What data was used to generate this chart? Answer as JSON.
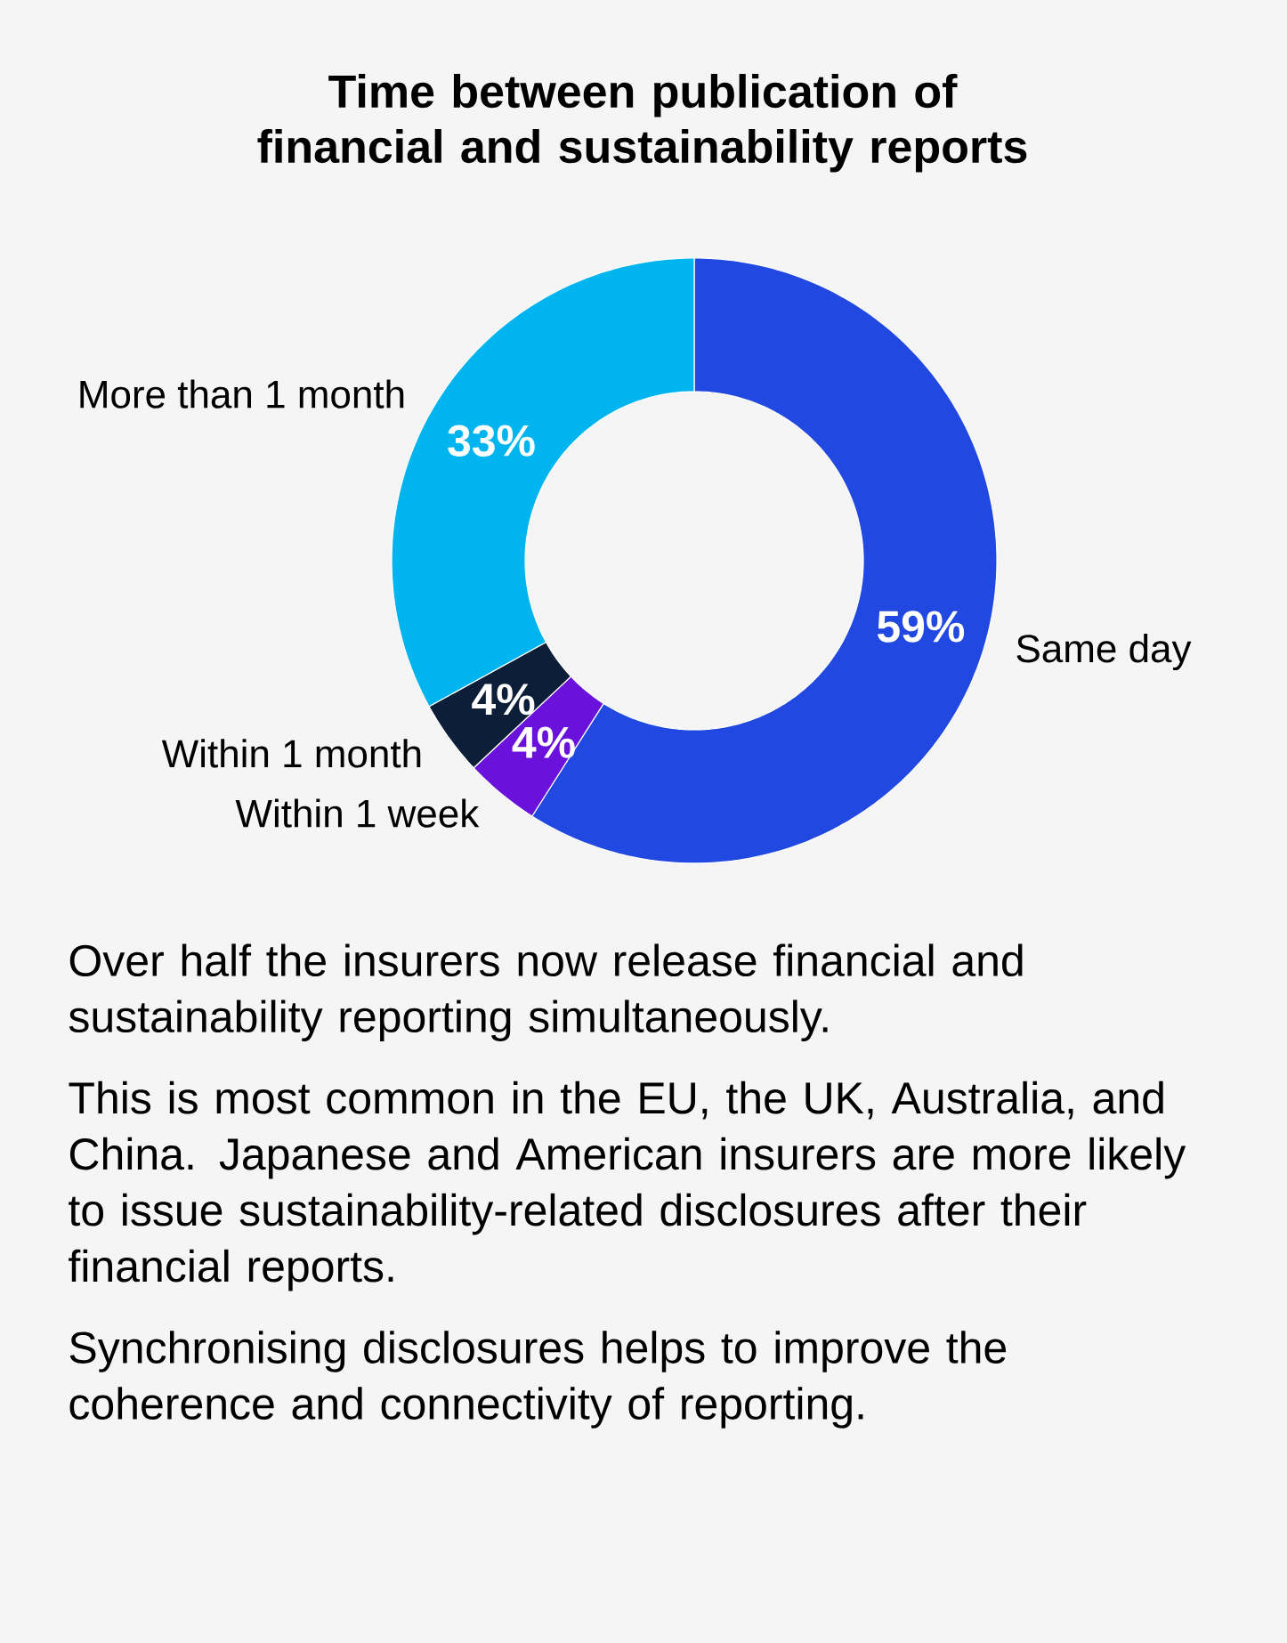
{
  "chart_data": {
    "type": "donut",
    "title": "Time between publication of financial and sustainability reports",
    "categories": [
      "Same day",
      "Within 1 week",
      "Within 1 month",
      "More than 1 month"
    ],
    "values": [
      59,
      4,
      4,
      33
    ],
    "value_labels": [
      "59%",
      "4%",
      "4%",
      "33%"
    ],
    "colors": [
      "#2148e0",
      "#6a12dc",
      "#0d1f38",
      "#00b4ef"
    ],
    "annotations": [
      "Over half the insurers now release financial and sustainability reporting simultaneously.",
      "This is most common in the EU, the UK, Australia, and China. Japanese and American insurers are more likely to issue sustainability-related disclosures after their financial reports.",
      "Synchronising disclosures helps to improve the coherence and connectivity of reporting."
    ]
  }
}
